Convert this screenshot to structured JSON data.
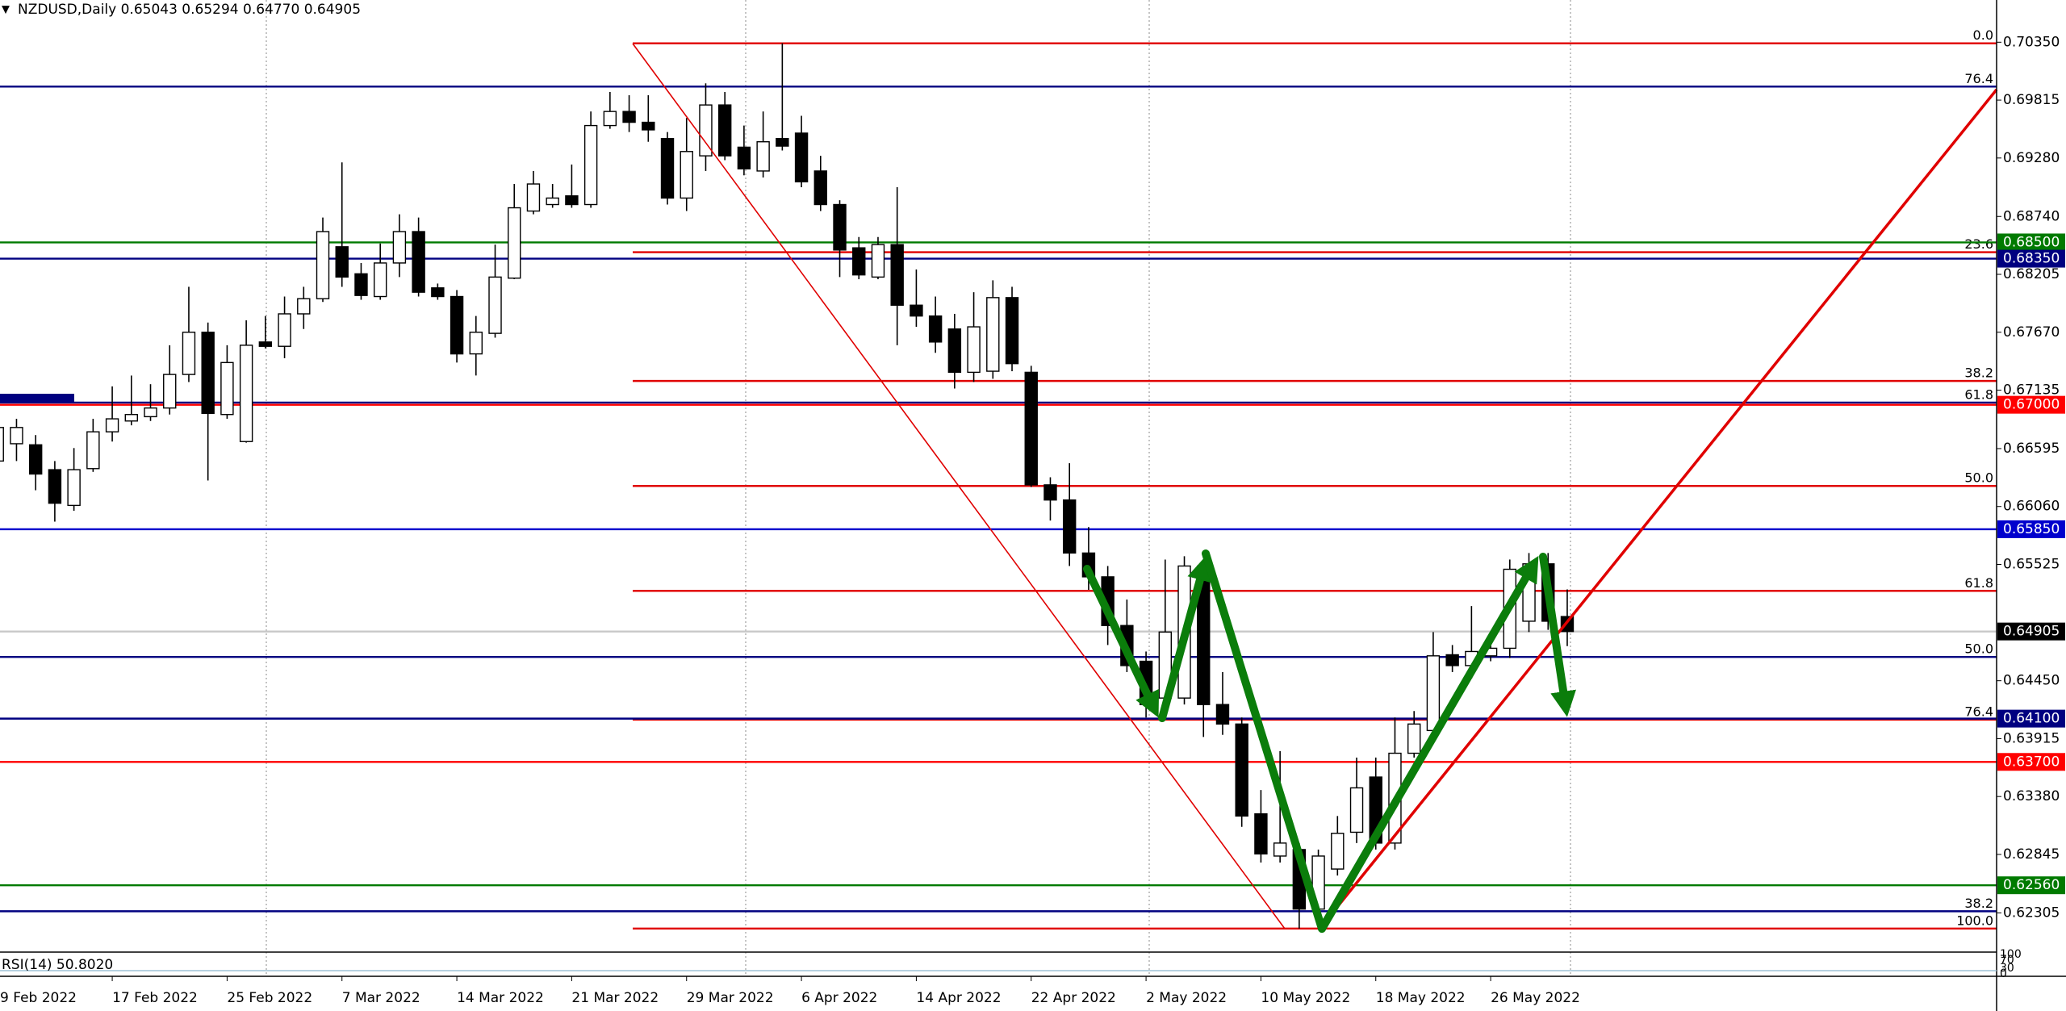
{
  "chart_data": {
    "type": "candlestick",
    "title": "NZDUSD,Daily  0.65043 0.65294 0.64770 0.64905",
    "categories": [
      "9 Feb 2022",
      null,
      null,
      null,
      null,
      null,
      "17 Feb 2022",
      null,
      null,
      null,
      null,
      null,
      "25 Feb 2022",
      null,
      null,
      null,
      null,
      null,
      "7 Mar 2022",
      null,
      null,
      null,
      null,
      null,
      "14 Mar 2022",
      null,
      null,
      null,
      null,
      null,
      "21 Mar 2022",
      null,
      null,
      null,
      null,
      null,
      "29 Mar 2022",
      null,
      null,
      null,
      null,
      null,
      "6 Apr 2022",
      null,
      null,
      null,
      null,
      null,
      "14 Apr 2022",
      null,
      null,
      null,
      null,
      null,
      "22 Apr 2022",
      null,
      null,
      null,
      null,
      null,
      "2 May 2022",
      null,
      null,
      null,
      null,
      null,
      "10 May 2022",
      null,
      null,
      null,
      null,
      null,
      "18 May 2022",
      null,
      null,
      null,
      null,
      null,
      "26 May 2022",
      null,
      null,
      null,
      null
    ],
    "open": [
      0.6648,
      0.6664,
      0.6663,
      0.664,
      0.6607,
      0.6641,
      0.6675,
      0.6685,
      0.6689,
      0.6697,
      0.6728,
      0.6767,
      0.6691,
      0.6666,
      0.6758,
      0.6754,
      0.6784,
      0.6798,
      0.6846,
      0.6821,
      0.68,
      0.6831,
      0.686,
      0.6808,
      0.68,
      0.6747,
      0.6766,
      0.6817,
      0.6879,
      0.6885,
      0.6893,
      0.6885,
      0.6958,
      0.6971,
      0.6961,
      0.6946,
      0.6891,
      0.693,
      0.6977,
      0.6938,
      0.6916,
      0.6946,
      0.6951,
      0.6916,
      0.6885,
      0.6845,
      0.6818,
      0.6848,
      0.6792,
      0.6782,
      0.677,
      0.673,
      0.6731,
      0.6799,
      0.673,
      0.6626,
      0.6612,
      0.6563,
      0.6541,
      0.6496,
      0.6463,
      0.6429,
      0.6429,
      0.6551,
      0.6423,
      0.6405,
      0.6322,
      0.6283,
      0.6289,
      0.6234,
      0.6271,
      0.6305,
      0.6356,
      0.6295,
      0.6378,
      0.6399,
      0.6469,
      0.6459,
      0.6468,
      0.6475,
      0.65,
      0.6553,
      0.65043
    ],
    "high": [
      0.6687,
      0.6687,
      0.6672,
      0.6648,
      0.666,
      0.6687,
      0.6717,
      0.6727,
      0.6719,
      0.6755,
      0.6809,
      0.6776,
      0.6755,
      0.6778,
      0.6782,
      0.68,
      0.6809,
      0.6873,
      0.6924,
      0.6831,
      0.6849,
      0.6876,
      0.6873,
      0.6812,
      0.6806,
      0.6782,
      0.6848,
      0.6904,
      0.6916,
      0.6904,
      0.6922,
      0.6971,
      0.6989,
      0.6986,
      0.6986,
      0.6952,
      0.6965,
      0.6997,
      0.6989,
      0.6958,
      0.6971,
      0.7034,
      0.6967,
      0.693,
      0.6889,
      0.6855,
      0.6855,
      0.6901,
      0.6825,
      0.68,
      0.6784,
      0.6804,
      0.6815,
      0.6809,
      0.6736,
      0.6633,
      0.6646,
      0.6587,
      0.6551,
      0.652,
      0.6472,
      0.6557,
      0.656,
      0.6557,
      0.6453,
      0.6411,
      0.6344,
      0.638,
      0.6295,
      0.6289,
      0.632,
      0.6374,
      0.6374,
      0.6411,
      0.6417,
      0.649,
      0.6478,
      0.6514,
      0.649,
      0.6557,
      0.6563,
      0.6563,
      0.65294
    ],
    "low": [
      0.6646,
      0.6648,
      0.6621,
      0.6592,
      0.6602,
      0.6638,
      0.6666,
      0.6681,
      0.6685,
      0.6691,
      0.6721,
      0.663,
      0.6687,
      0.6665,
      0.6752,
      0.6743,
      0.677,
      0.6795,
      0.6809,
      0.6797,
      0.6797,
      0.6818,
      0.68,
      0.6797,
      0.6739,
      0.6727,
      0.6762,
      0.6816,
      0.6876,
      0.6882,
      0.6882,
      0.6882,
      0.6955,
      0.6952,
      0.6943,
      0.6885,
      0.6879,
      0.6916,
      0.6926,
      0.6912,
      0.691,
      0.6935,
      0.6901,
      0.6879,
      0.6818,
      0.6816,
      0.6816,
      0.6755,
      0.6772,
      0.6748,
      0.6715,
      0.6721,
      0.6724,
      0.6731,
      0.6624,
      0.6593,
      0.6551,
      0.6529,
      0.6478,
      0.6453,
      0.6411,
      0.6419,
      0.6423,
      0.6393,
      0.6395,
      0.631,
      0.6277,
      0.6277,
      0.6216,
      0.6218,
      0.6265,
      0.6295,
      0.6289,
      0.6289,
      0.6374,
      0.6393,
      0.6453,
      0.6447,
      0.6463,
      0.6466,
      0.649,
      0.6492,
      0.6477
    ],
    "close": [
      0.6679,
      0.6679,
      0.6636,
      0.6609,
      0.664,
      0.6675,
      0.6687,
      0.6691,
      0.6697,
      0.6728,
      0.6767,
      0.6692,
      0.6739,
      0.6755,
      0.6754,
      0.6784,
      0.6798,
      0.686,
      0.6818,
      0.6801,
      0.6831,
      0.686,
      0.6804,
      0.68,
      0.6747,
      0.6767,
      0.6818,
      0.6882,
      0.6904,
      0.6891,
      0.6885,
      0.6958,
      0.6971,
      0.6961,
      0.6954,
      0.6891,
      0.6934,
      0.6977,
      0.693,
      0.6918,
      0.6943,
      0.6939,
      0.6906,
      0.6885,
      0.6843,
      0.682,
      0.6848,
      0.6792,
      0.6782,
      0.6758,
      0.673,
      0.6772,
      0.6799,
      0.6738,
      0.6626,
      0.6612,
      0.6563,
      0.6541,
      0.6496,
      0.6459,
      0.6423,
      0.649,
      0.6551,
      0.6423,
      0.6405,
      0.632,
      0.6285,
      0.6295,
      0.6234,
      0.6283,
      0.6304,
      0.6346,
      0.6295,
      0.6378,
      0.6405,
      0.6468,
      0.6459,
      0.6472,
      0.6475,
      0.6548,
      0.6553,
      0.65,
      0.64905
    ],
    "up_color": "#ffffff",
    "down_color": "#000000",
    "ylim": [
      0.6195,
      0.7074
    ],
    "yticks": [
      {
        "value": 0.7035,
        "label": "0.70350"
      },
      {
        "value": 0.69815,
        "label": "0.69815"
      },
      {
        "value": 0.6928,
        "label": "0.69280"
      },
      {
        "value": 0.6874,
        "label": "0.68740"
      },
      {
        "value": 0.68205,
        "label": "0.68205"
      },
      {
        "value": 0.6767,
        "label": "0.67670"
      },
      {
        "value": 0.67135,
        "label": "0.67135"
      },
      {
        "value": 0.66595,
        "label": "0.66595"
      },
      {
        "value": 0.6606,
        "label": "0.66060"
      },
      {
        "value": 0.65525,
        "label": "0.65525"
      },
      {
        "value": 0.6445,
        "label": "0.64450"
      },
      {
        "value": 0.63915,
        "label": "0.63915"
      },
      {
        "value": 0.6338,
        "label": "0.63380"
      },
      {
        "value": 0.62845,
        "label": "0.62845"
      },
      {
        "value": 0.62305,
        "label": "0.62305"
      }
    ],
    "price_levels": [
      {
        "value": 0.685,
        "label": "0.68500",
        "color": "#007a00"
      },
      {
        "value": 0.6835,
        "label": "0.68350",
        "color": "#000080"
      },
      {
        "value": 0.67,
        "label": "0.67000",
        "color": "#ff0000"
      },
      {
        "value": 0.6585,
        "label": "0.65850",
        "color": "#0000cd"
      },
      {
        "value": 0.641,
        "label": "0.64100",
        "color": "#000080"
      },
      {
        "value": 0.637,
        "label": "0.63700",
        "color": "#ff0000"
      },
      {
        "value": 0.6256,
        "label": "0.62560",
        "color": "#007a00"
      }
    ],
    "last_price": {
      "value": 0.64905,
      "label": "0.64905",
      "color": "#000000"
    },
    "fib_red": {
      "color": "#e00000",
      "levels": [
        {
          "value": 0.7034,
          "label": "0.0"
        },
        {
          "value": 0.6841,
          "label": "23.6"
        },
        {
          "value": 0.6722,
          "label": "38.2"
        },
        {
          "value": 0.6625,
          "label": "50.0"
        },
        {
          "value": 0.6528,
          "label": "61.8"
        },
        {
          "value": 0.6409,
          "label": "76.4"
        },
        {
          "value": 0.6216,
          "label": "100.0"
        }
      ]
    },
    "fib_navy": {
      "color": "#000080",
      "levels": [
        {
          "value": 0.6994,
          "label": "76.4"
        },
        {
          "value": 0.6702,
          "label": "61.8"
        },
        {
          "value": 0.6467,
          "label": "50.0"
        },
        {
          "value": 0.6232,
          "label": "38.2"
        }
      ]
    },
    "rsi": {
      "label": "RSI(14) 50.8020",
      "yticks": [
        100,
        70,
        30,
        0
      ]
    }
  }
}
